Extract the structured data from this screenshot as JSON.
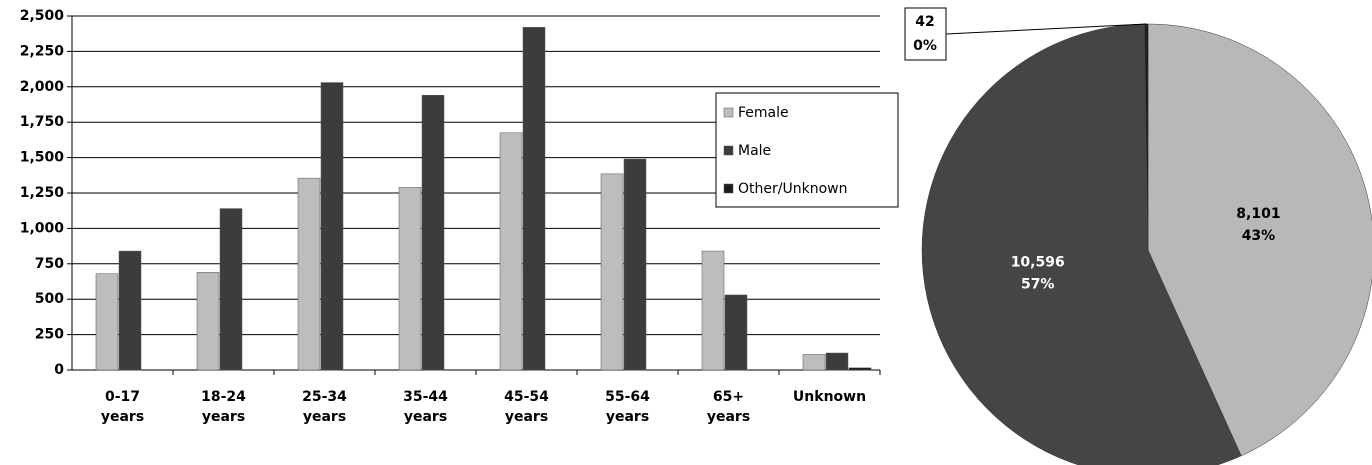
{
  "chart_data": [
    {
      "type": "bar",
      "categories": [
        "0-17 years",
        "18-24 years",
        "25-34 years",
        "35-44 years",
        "45-54 years",
        "55-64 years",
        "65+ years",
        "Unknown"
      ],
      "series": [
        {
          "name": "Female",
          "color": "#bdbdbd",
          "values": [
            680,
            690,
            1355,
            1290,
            1675,
            1385,
            840,
            110
          ]
        },
        {
          "name": "Male",
          "color": "#3c3c3c",
          "values": [
            840,
            1140,
            2030,
            1940,
            2420,
            1490,
            530,
            120
          ]
        },
        {
          "name": "Other/Unknown",
          "color": "#1c1c1c",
          "values": [
            0,
            0,
            0,
            0,
            0,
            0,
            0,
            15
          ]
        }
      ],
      "ylim": [
        0,
        2500
      ],
      "yticks": [
        0,
        250,
        500,
        750,
        {
          "value": 1000,
          "label": "1,000"
        },
        {
          "value": 1250,
          "label": "1,250"
        },
        {
          "value": 1500,
          "label": "1,500"
        },
        {
          "value": 1750,
          "label": "1,750"
        },
        {
          "value": 2000,
          "label": "2,000"
        },
        {
          "value": 2250,
          "label": "2,250"
        },
        {
          "value": 2500,
          "label": "2,500"
        }
      ],
      "grid": true
    },
    {
      "type": "pie",
      "categories": [
        "Female",
        "Male",
        "Other/Unknown"
      ],
      "values": [
        8101,
        10596,
        42
      ],
      "value_labels": [
        "8,101",
        "10,596",
        "42"
      ],
      "percent_labels": [
        "43%",
        "57%",
        "0%"
      ],
      "colors": [
        "#b8b8b8",
        "#454545",
        "#1c1c1c"
      ]
    }
  ]
}
